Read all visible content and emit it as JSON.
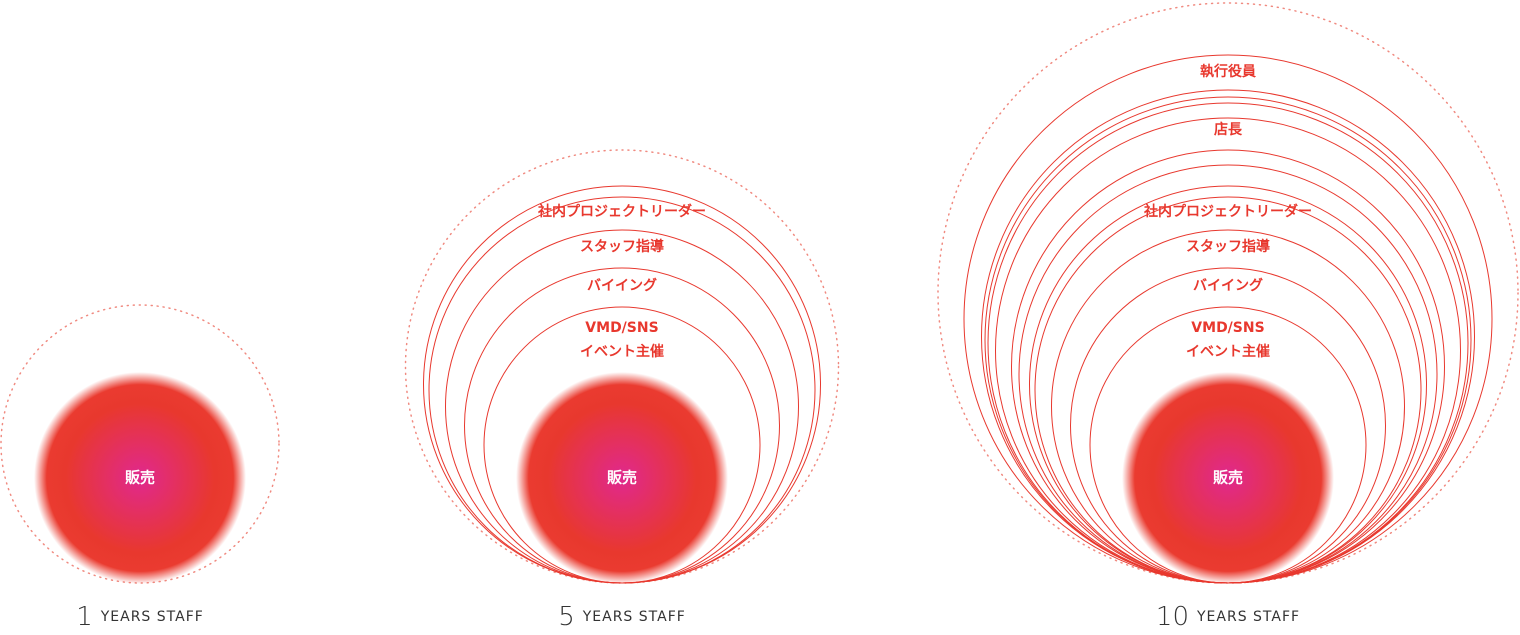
{
  "groups": [
    {
      "years": "1",
      "label": "YEARS STAFF",
      "core": "販売",
      "roles": []
    },
    {
      "years": "5",
      "label": "YEARS STAFF",
      "core": "販売",
      "roles": [
        "社内プロジェクトリーダー",
        "スタッフ指導",
        "バイイング",
        "VMD/SNS",
        "イベント主催"
      ]
    },
    {
      "years": "10",
      "label": "YEARS STAFF",
      "core": "販売",
      "roles": [
        "執行役員",
        "店長",
        "社内プロジェクトリーダー",
        "スタッフ指導",
        "バイイング",
        "VMD/SNS",
        "イベント主催"
      ]
    }
  ]
}
